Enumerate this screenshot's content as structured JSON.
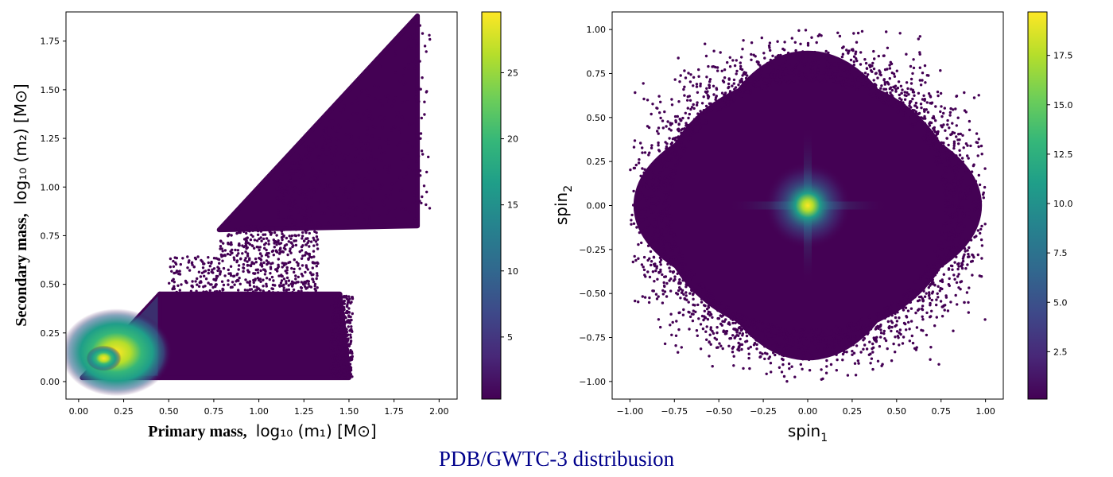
{
  "figure_title": "PDB/GWTC-3 distribusion",
  "colors": {
    "viridis": [
      "#440154",
      "#482878",
      "#3e4989",
      "#31688e",
      "#26828e",
      "#1f9e89",
      "#35b779",
      "#6ece58",
      "#b5de2b",
      "#fde725"
    ],
    "scatter_base": "#440154"
  },
  "chart_data": [
    {
      "type": "scatter",
      "title": "",
      "xlabel_bold": "Primary mass,",
      "xlabel_math": "log₁₀ (m₁) [M⊙]",
      "ylabel_bold": "Secondary mass,",
      "ylabel_math": "log₁₀ (m₂) [M⊙]",
      "xlim": [
        -0.07,
        2.1
      ],
      "ylim": [
        -0.09,
        1.9
      ],
      "xticks": [
        "0.00",
        "0.25",
        "0.50",
        "0.75",
        "1.00",
        "1.25",
        "1.50",
        "1.75",
        "2.00"
      ],
      "xtick_values": [
        0,
        0.25,
        0.5,
        0.75,
        1.0,
        1.25,
        1.5,
        1.75,
        2.0
      ],
      "yticks": [
        "0.00",
        "0.25",
        "0.50",
        "0.75",
        "1.00",
        "1.25",
        "1.50",
        "1.75"
      ],
      "ytick_values": [
        0,
        0.25,
        0.5,
        0.75,
        1.0,
        1.25,
        1.5,
        1.75
      ],
      "density_peak": {
        "x": 0.14,
        "y": 0.12
      },
      "regions": [
        {
          "name": "low-mass wedge",
          "polygon": [
            [
              0.02,
              0.02
            ],
            [
              0.45,
              0.45
            ],
            [
              0.45,
              0.02
            ]
          ]
        },
        {
          "name": "lower band",
          "polygon": [
            [
              0.45,
              0.02
            ],
            [
              0.45,
              0.45
            ],
            [
              1.45,
              0.45
            ],
            [
              1.5,
              0.02
            ]
          ]
        },
        {
          "name": "upper wedge",
          "polygon": [
            [
              0.78,
              0.78
            ],
            [
              1.88,
              1.88
            ],
            [
              1.88,
              0.8
            ],
            [
              0.78,
              0.78
            ]
          ]
        }
      ],
      "colorbar": {
        "min": 0.3,
        "max": 29.6,
        "ticks": [
          5,
          10,
          15,
          20,
          25
        ],
        "tick_labels": [
          "5",
          "10",
          "15",
          "20",
          "25"
        ]
      }
    },
    {
      "type": "scatter",
      "title": "",
      "xlabel": "spin",
      "xlabel_sub": "1",
      "ylabel": "spin",
      "ylabel_sub": "2",
      "xlim": [
        -1.1,
        1.1
      ],
      "ylim": [
        -1.1,
        1.1
      ],
      "xticks": [
        "−1.00",
        "−0.75",
        "−0.50",
        "−0.25",
        "0.00",
        "0.25",
        "0.50",
        "0.75",
        "1.00"
      ],
      "xtick_values": [
        -1,
        -0.75,
        -0.5,
        -0.25,
        0,
        0.25,
        0.5,
        0.75,
        1.0
      ],
      "yticks": [
        "−1.00",
        "−0.75",
        "−0.50",
        "−0.25",
        "0.00",
        "0.25",
        "0.50",
        "0.75",
        "1.00"
      ],
      "ytick_values": [
        -1,
        -0.75,
        -0.5,
        -0.25,
        0,
        0.25,
        0.5,
        0.75,
        1.0
      ],
      "density_peak": {
        "x": 0.0,
        "y": 0.0
      },
      "colorbar": {
        "min": 0.1,
        "max": 19.7,
        "ticks": [
          2.5,
          5.0,
          7.5,
          10.0,
          12.5,
          15.0,
          17.5
        ],
        "tick_labels": [
          "2.5",
          "5.0",
          "7.5",
          "10.0",
          "12.5",
          "15.0",
          "17.5"
        ]
      }
    }
  ]
}
